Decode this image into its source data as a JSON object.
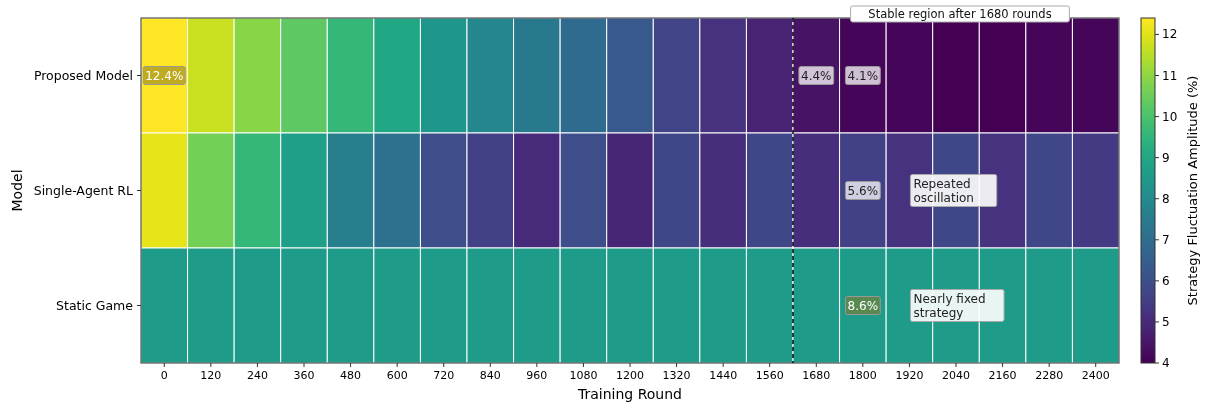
{
  "chart_data": {
    "type": "heatmap",
    "xlabel": "Training Round",
    "ylabel": "Model",
    "clabel": "Strategy Fluctuation Amplitude (%)",
    "categories": [
      "0",
      "120",
      "240",
      "360",
      "480",
      "600",
      "720",
      "840",
      "960",
      "1080",
      "1200",
      "1320",
      "1440",
      "1560",
      "1680",
      "1800",
      "1920",
      "2040",
      "2160",
      "2280",
      "2400"
    ],
    "y_categories": [
      "Proposed Model",
      "Single-Agent RL",
      "Static Game"
    ],
    "cells": [
      [
        12.4,
        11.7,
        10.9,
        10.3,
        9.6,
        9.0,
        8.4,
        7.9,
        7.4,
        6.9,
        6.3,
        5.7,
        5.2,
        4.8,
        4.4,
        4.1,
        4.1,
        4.0,
        4.0,
        4.1,
        4.1
      ],
      [
        12.1,
        10.6,
        9.6,
        8.7,
        7.6,
        7.1,
        6.0,
        5.6,
        5.0,
        6.0,
        4.9,
        5.8,
        5.1,
        5.8,
        5.1,
        5.6,
        5.2,
        5.8,
        5.2,
        5.8,
        5.4
      ],
      [
        8.6,
        8.6,
        8.6,
        8.6,
        8.6,
        8.6,
        8.6,
        8.6,
        8.6,
        8.6,
        8.6,
        8.6,
        8.6,
        8.6,
        8.6,
        8.6,
        8.6,
        8.6,
        8.6,
        8.6,
        8.6
      ]
    ],
    "cell_labels": [
      [
        "12.4%",
        null,
        null,
        null,
        null,
        null,
        null,
        null,
        null,
        null,
        null,
        null,
        null,
        null,
        "4.4%",
        "4.1%",
        null,
        null,
        null,
        null,
        null
      ],
      [
        null,
        null,
        null,
        null,
        null,
        null,
        null,
        null,
        null,
        null,
        null,
        null,
        null,
        null,
        null,
        "5.6%",
        null,
        null,
        null,
        null,
        null
      ],
      [
        null,
        null,
        null,
        null,
        null,
        null,
        null,
        null,
        null,
        null,
        null,
        null,
        null,
        null,
        null,
        "8.6%",
        null,
        null,
        null,
        null,
        null
      ]
    ],
    "clim": [
      4,
      12.4
    ],
    "cticks": [
      4,
      5,
      6,
      7,
      8,
      9,
      10,
      11,
      12
    ],
    "annotations": [
      "Stable region after 1680 rounds",
      "Repeated oscillation",
      "Nearly fixed strategy"
    ]
  }
}
